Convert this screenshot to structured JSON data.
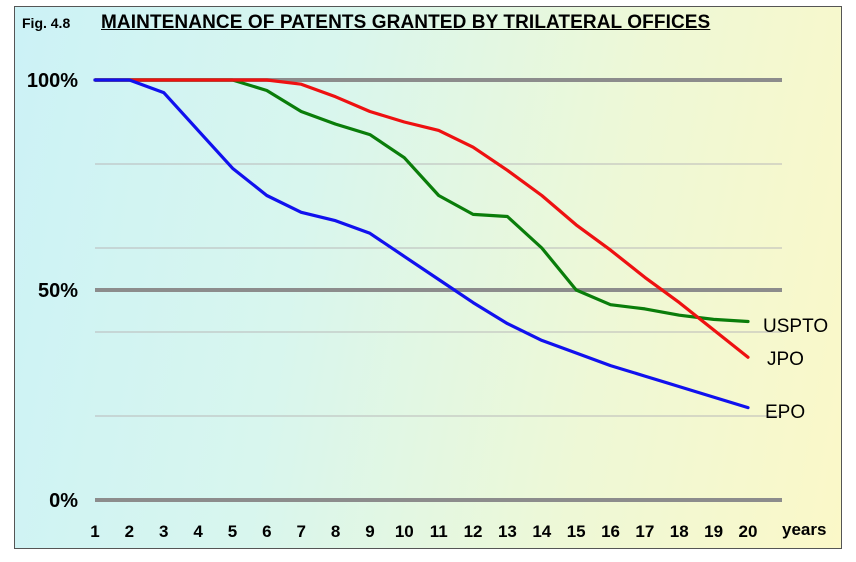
{
  "figure": {
    "label": "Fig. 4.8",
    "title": "MAINTENANCE OF PATENTS GRANTED BY TRILATERAL OFFICES"
  },
  "chart_data": {
    "type": "line",
    "title": "MAINTENANCE OF PATENTS GRANTED BY TRILATERAL OFFICES",
    "xlabel": "years",
    "ylabel": "",
    "x": [
      1,
      2,
      3,
      4,
      5,
      6,
      7,
      8,
      9,
      10,
      11,
      12,
      13,
      14,
      15,
      16,
      17,
      18,
      19,
      20
    ],
    "xlim": [
      1,
      20
    ],
    "ylim": [
      0,
      100
    ],
    "y_ticks": [
      0,
      50,
      100
    ],
    "y_tick_labels": [
      "0%",
      "50%",
      "100%"
    ],
    "minor_gridlines": [
      20,
      40,
      60,
      80
    ],
    "grid": true,
    "legend": "inline-right",
    "series": [
      {
        "name": "USPTO",
        "color": "#0a7d0a",
        "values": [
          100,
          100,
          100,
          100,
          100,
          97.5,
          92.5,
          89.5,
          87,
          81.5,
          72.5,
          68,
          67.5,
          60,
          50,
          46.5,
          45.5,
          44,
          43,
          42.5
        ]
      },
      {
        "name": "JPO",
        "color": "#ee1111",
        "values": [
          100,
          100,
          100,
          100,
          100,
          100,
          99,
          96,
          92.5,
          90,
          88,
          84,
          78.5,
          72.5,
          65.5,
          59.5,
          53,
          47,
          40.5,
          34
        ]
      },
      {
        "name": "EPO",
        "color": "#1111ee",
        "values": [
          100,
          100,
          97,
          88,
          79,
          72.5,
          68.5,
          66.5,
          63.5,
          58,
          52.5,
          47,
          42,
          38,
          35,
          32,
          29.5,
          27,
          24.5,
          22
        ]
      }
    ]
  }
}
